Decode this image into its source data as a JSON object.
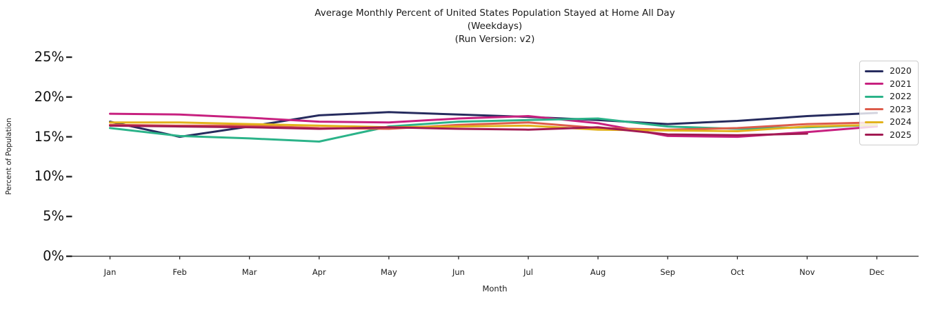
{
  "title": {
    "line1": "Average Monthly Percent of United States Population Stayed at Home All Day",
    "line2": "(Weekdays)",
    "line3": "(Run Version: v2)"
  },
  "axes": {
    "x_label": "Month",
    "y_label": "Percent of Population",
    "x_ticks": [
      "Jan",
      "Feb",
      "Mar",
      "Apr",
      "May",
      "Jun",
      "Jul",
      "Aug",
      "Sep",
      "Oct",
      "Nov",
      "Dec"
    ],
    "y_ticks": [
      "0%",
      "5%",
      "10%",
      "15%",
      "20%",
      "25%"
    ]
  },
  "legend": {
    "entries": [
      "2020",
      "2021",
      "2022",
      "2023",
      "2024",
      "2025"
    ]
  },
  "chart_data": {
    "type": "line",
    "title": "Average Monthly Percent of United States Population Stayed at Home All Day (Weekdays) (Run Version: v2)",
    "xlabel": "Month",
    "ylabel": "Percent of Population",
    "ylim": [
      0,
      25
    ],
    "y_tick_values": [
      0,
      5,
      10,
      15,
      20,
      25
    ],
    "grid": false,
    "legend_position": "upper right",
    "categories": [
      "Jan",
      "Feb",
      "Mar",
      "Apr",
      "May",
      "Jun",
      "Jul",
      "Aug",
      "Sep",
      "Oct",
      "Nov",
      "Dec"
    ],
    "series": [
      {
        "name": "2020",
        "color": "#262b5e",
        "values": [
          16.9,
          15.0,
          16.3,
          17.7,
          18.1,
          17.8,
          17.5,
          17.1,
          16.6,
          17.0,
          17.6,
          18.0
        ]
      },
      {
        "name": "2021",
        "color": "#c7207f",
        "values": [
          17.9,
          17.8,
          17.4,
          16.9,
          16.8,
          17.3,
          17.6,
          16.7,
          15.1,
          15.0,
          15.6,
          16.3
        ]
      },
      {
        "name": "2022",
        "color": "#2bb389",
        "values": [
          16.1,
          15.1,
          14.8,
          14.4,
          16.3,
          16.9,
          17.1,
          17.3,
          16.3,
          16.0,
          16.2,
          16.5
        ]
      },
      {
        "name": "2023",
        "color": "#dd5c4b",
        "values": [
          16.5,
          16.4,
          16.4,
          16.1,
          16.0,
          16.5,
          16.8,
          16.1,
          15.9,
          16.1,
          16.6,
          16.8
        ]
      },
      {
        "name": "2024",
        "color": "#e2b21c",
        "values": [
          16.8,
          16.8,
          16.6,
          16.4,
          16.2,
          16.3,
          16.4,
          15.9,
          15.8,
          15.7,
          16.3,
          16.5
        ]
      },
      {
        "name": "2025",
        "color": "#a21a52",
        "values": [
          16.4,
          16.3,
          16.2,
          16.0,
          16.2,
          16.0,
          15.9,
          16.2,
          15.3,
          15.2,
          15.4
        ]
      }
    ]
  },
  "style": {
    "axis_color": "#262626",
    "text_color": "#1a1a1a",
    "line_width": 3
  }
}
